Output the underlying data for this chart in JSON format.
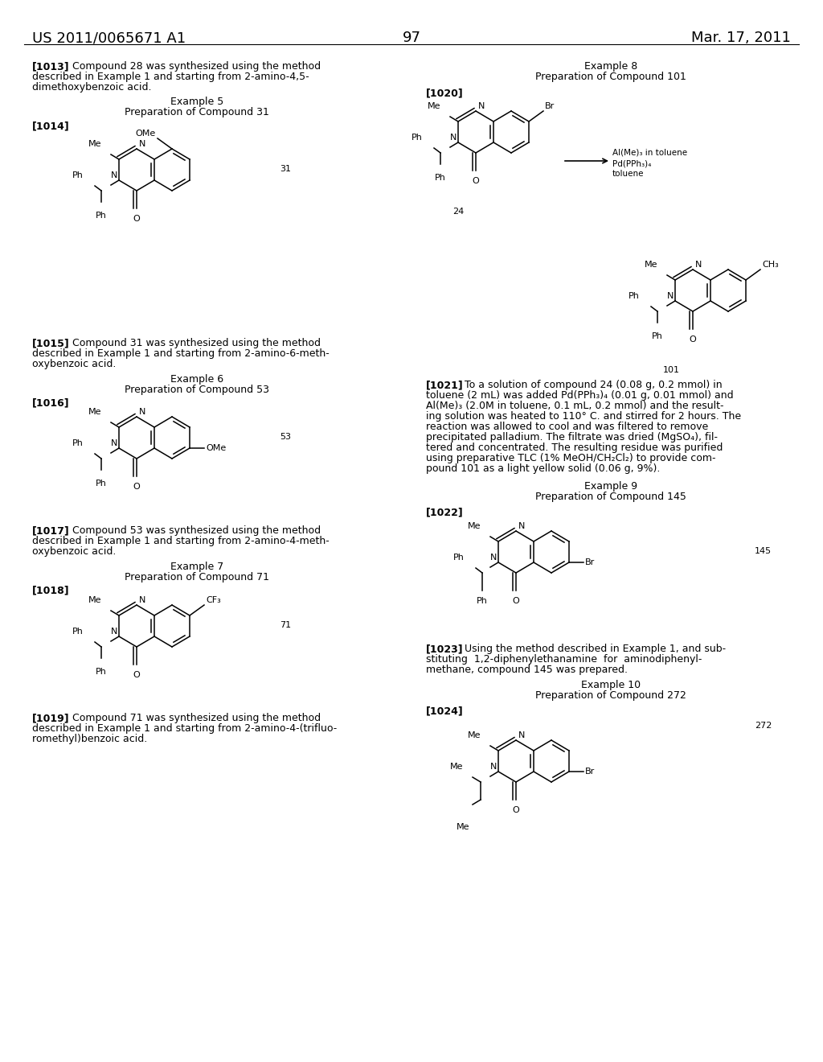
{
  "page_header_left": "US 2011/0065671 A1",
  "page_header_right": "Mar. 17, 2011",
  "page_number": "97",
  "bg": "#ffffff"
}
